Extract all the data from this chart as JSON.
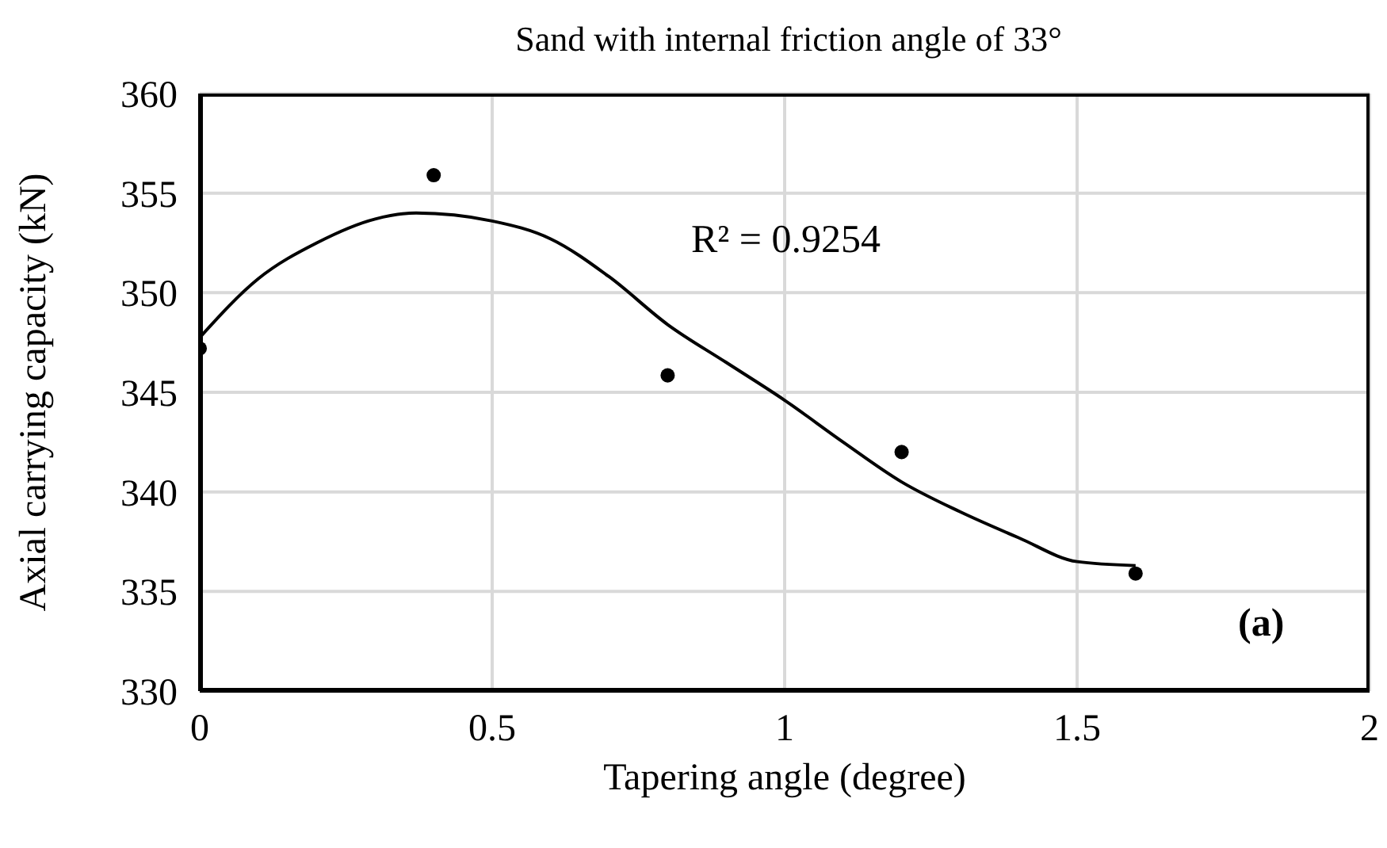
{
  "chart_data": {
    "type": "scatter",
    "title": "Sand with internal friction angle of 33°",
    "xlabel": "Tapering angle (degree)",
    "ylabel": "Axial carrying capacity (kN)",
    "x": [
      0,
      0.4,
      0.8,
      1.2,
      1.6
    ],
    "series": [
      {
        "color": "#000000",
        "marker": "circle",
        "values": [
          347.2,
          355.9,
          345.85,
          342.0,
          335.9
        ]
      },
      {
        "type": "line",
        "color": "#000000",
        "marker": "none",
        "line_style": "solid",
        "x": [
          0,
          0.1,
          0.2,
          0.3,
          0.37,
          0.5,
          0.6,
          0.7,
          0.8,
          0.9,
          1.0,
          1.1,
          1.2,
          1.3,
          1.4,
          1.5,
          1.6
        ],
        "values": [
          347.75,
          350.7,
          352.5,
          353.7,
          354.0,
          353.6,
          352.7,
          350.8,
          348.4,
          346.5,
          344.6,
          342.5,
          340.5,
          339.0,
          337.7,
          336.5,
          336.3
        ]
      }
    ],
    "xlim": [
      0,
      2
    ],
    "xticks": [
      0,
      0.5,
      1,
      1.5,
      2
    ],
    "ylim": [
      330,
      360
    ],
    "yticks": [
      330,
      335,
      340,
      345,
      350,
      355,
      360
    ],
    "grid": true,
    "annotations": [
      "R² = 0.9254",
      "(a)"
    ]
  }
}
